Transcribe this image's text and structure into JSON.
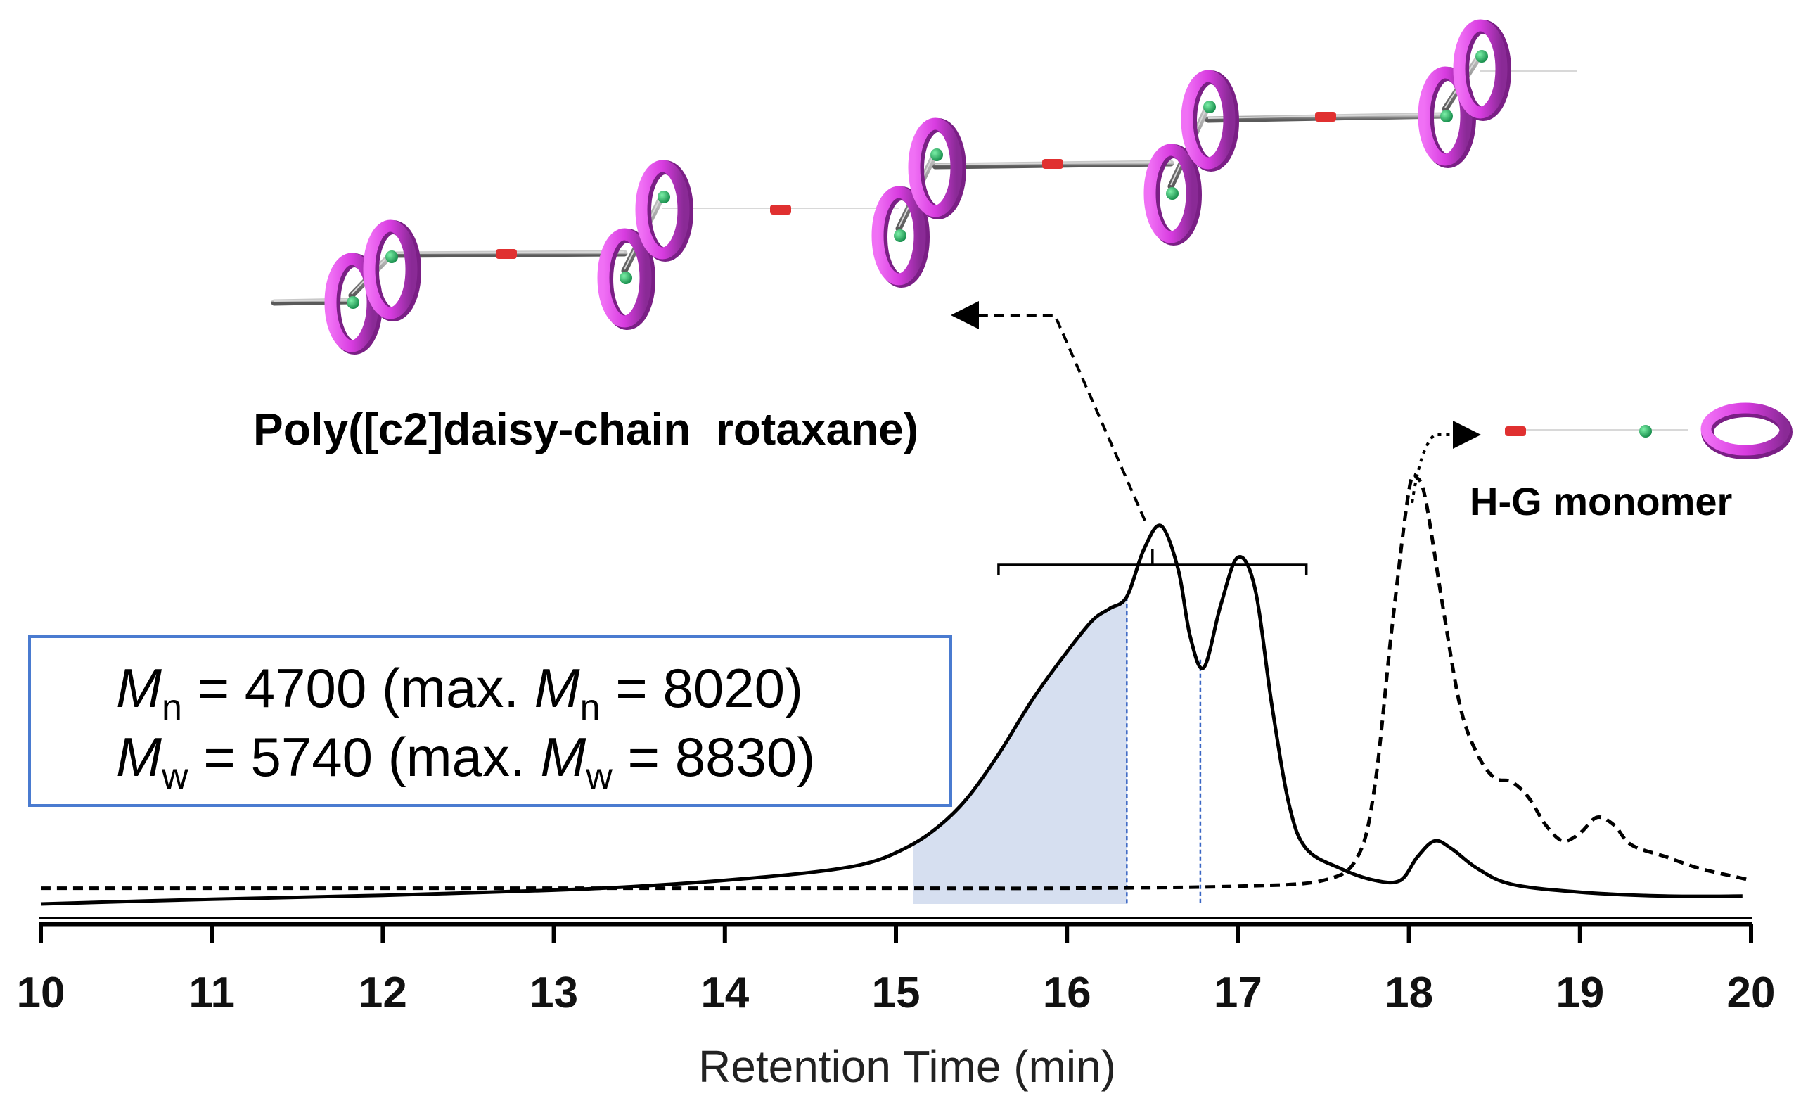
{
  "chart_data": {
    "type": "line",
    "title": "",
    "xlabel": "Retention Time (min)",
    "ylabel": "",
    "xlim": [
      10,
      20
    ],
    "ylim": [
      0,
      1
    ],
    "x_ticks": [
      "10",
      "11",
      "12",
      "13",
      "14",
      "15",
      "16",
      "17",
      "18",
      "19",
      "20"
    ],
    "grid": false,
    "series": [
      {
        "name": "Poly([c2]daisy-chain rotaxane)",
        "style": "solid",
        "x": [
          10,
          11,
          12,
          13,
          13.5,
          14,
          14.5,
          14.8,
          15,
          15.2,
          15.4,
          15.6,
          15.8,
          16,
          16.15,
          16.25,
          16.35,
          16.45,
          16.55,
          16.65,
          16.72,
          16.8,
          16.9,
          17,
          17.1,
          17.2,
          17.3,
          17.4,
          17.6,
          17.8,
          17.95,
          18.05,
          18.15,
          18.25,
          18.4,
          18.6,
          19,
          19.5,
          19.95
        ],
        "y": [
          0.0,
          0.012,
          0.022,
          0.035,
          0.045,
          0.06,
          0.08,
          0.1,
          0.13,
          0.18,
          0.26,
          0.38,
          0.52,
          0.64,
          0.72,
          0.75,
          0.78,
          0.9,
          0.96,
          0.85,
          0.68,
          0.6,
          0.76,
          0.88,
          0.8,
          0.5,
          0.25,
          0.14,
          0.09,
          0.06,
          0.06,
          0.12,
          0.16,
          0.14,
          0.09,
          0.05,
          0.03,
          0.02,
          0.02
        ]
      },
      {
        "name": "H-G monomer",
        "style": "dashed",
        "x": [
          10,
          12,
          14,
          15,
          16,
          17,
          17.5,
          17.7,
          17.8,
          17.9,
          18,
          18.05,
          18.1,
          18.2,
          18.3,
          18.4,
          18.5,
          18.6,
          18.7,
          18.8,
          18.9,
          19,
          19.1,
          19.2,
          19.3,
          19.5,
          19.7,
          19.9,
          20
        ],
        "y": [
          0.04,
          0.04,
          0.04,
          0.04,
          0.04,
          0.045,
          0.06,
          0.12,
          0.3,
          0.7,
          1.05,
          1.08,
          1.02,
          0.75,
          0.5,
          0.38,
          0.32,
          0.31,
          0.27,
          0.2,
          0.16,
          0.18,
          0.22,
          0.2,
          0.15,
          0.12,
          0.09,
          0.07,
          0.06
        ]
      }
    ],
    "shaded_region": {
      "x_start": 15.1,
      "x_end": 16.35,
      "series": "Poly([c2]daisy-chain rotaxane)",
      "color": "#d6dff0"
    },
    "vertical_markers": [
      16.35,
      16.78
    ],
    "bracket": {
      "x_start": 15.6,
      "x_end": 17.4
    },
    "annotations": {
      "poly_label": "Poly([c2]daisy-chain  rotaxane)",
      "monomer_label": "H-G monomer",
      "mn_line": {
        "symbol": "M",
        "sub": "n",
        "text": " = 4700 (max. ",
        "max_symbol": "M",
        "max_sub": "n",
        "max_text": " = 8020)"
      },
      "mw_line": {
        "symbol": "M",
        "sub": "w",
        "text": " = 5740 (max. ",
        "max_symbol": "M",
        "max_sub": "w",
        "max_text": " = 8830)"
      }
    },
    "colors": {
      "ring": "#e040e8",
      "ring_dark": "#7a1f85",
      "axle": "#8a8a8a",
      "stopper": "#e03030",
      "bead": "#22b060",
      "box_border": "#4a7bd0",
      "marker_line": "#3a66c4"
    }
  }
}
